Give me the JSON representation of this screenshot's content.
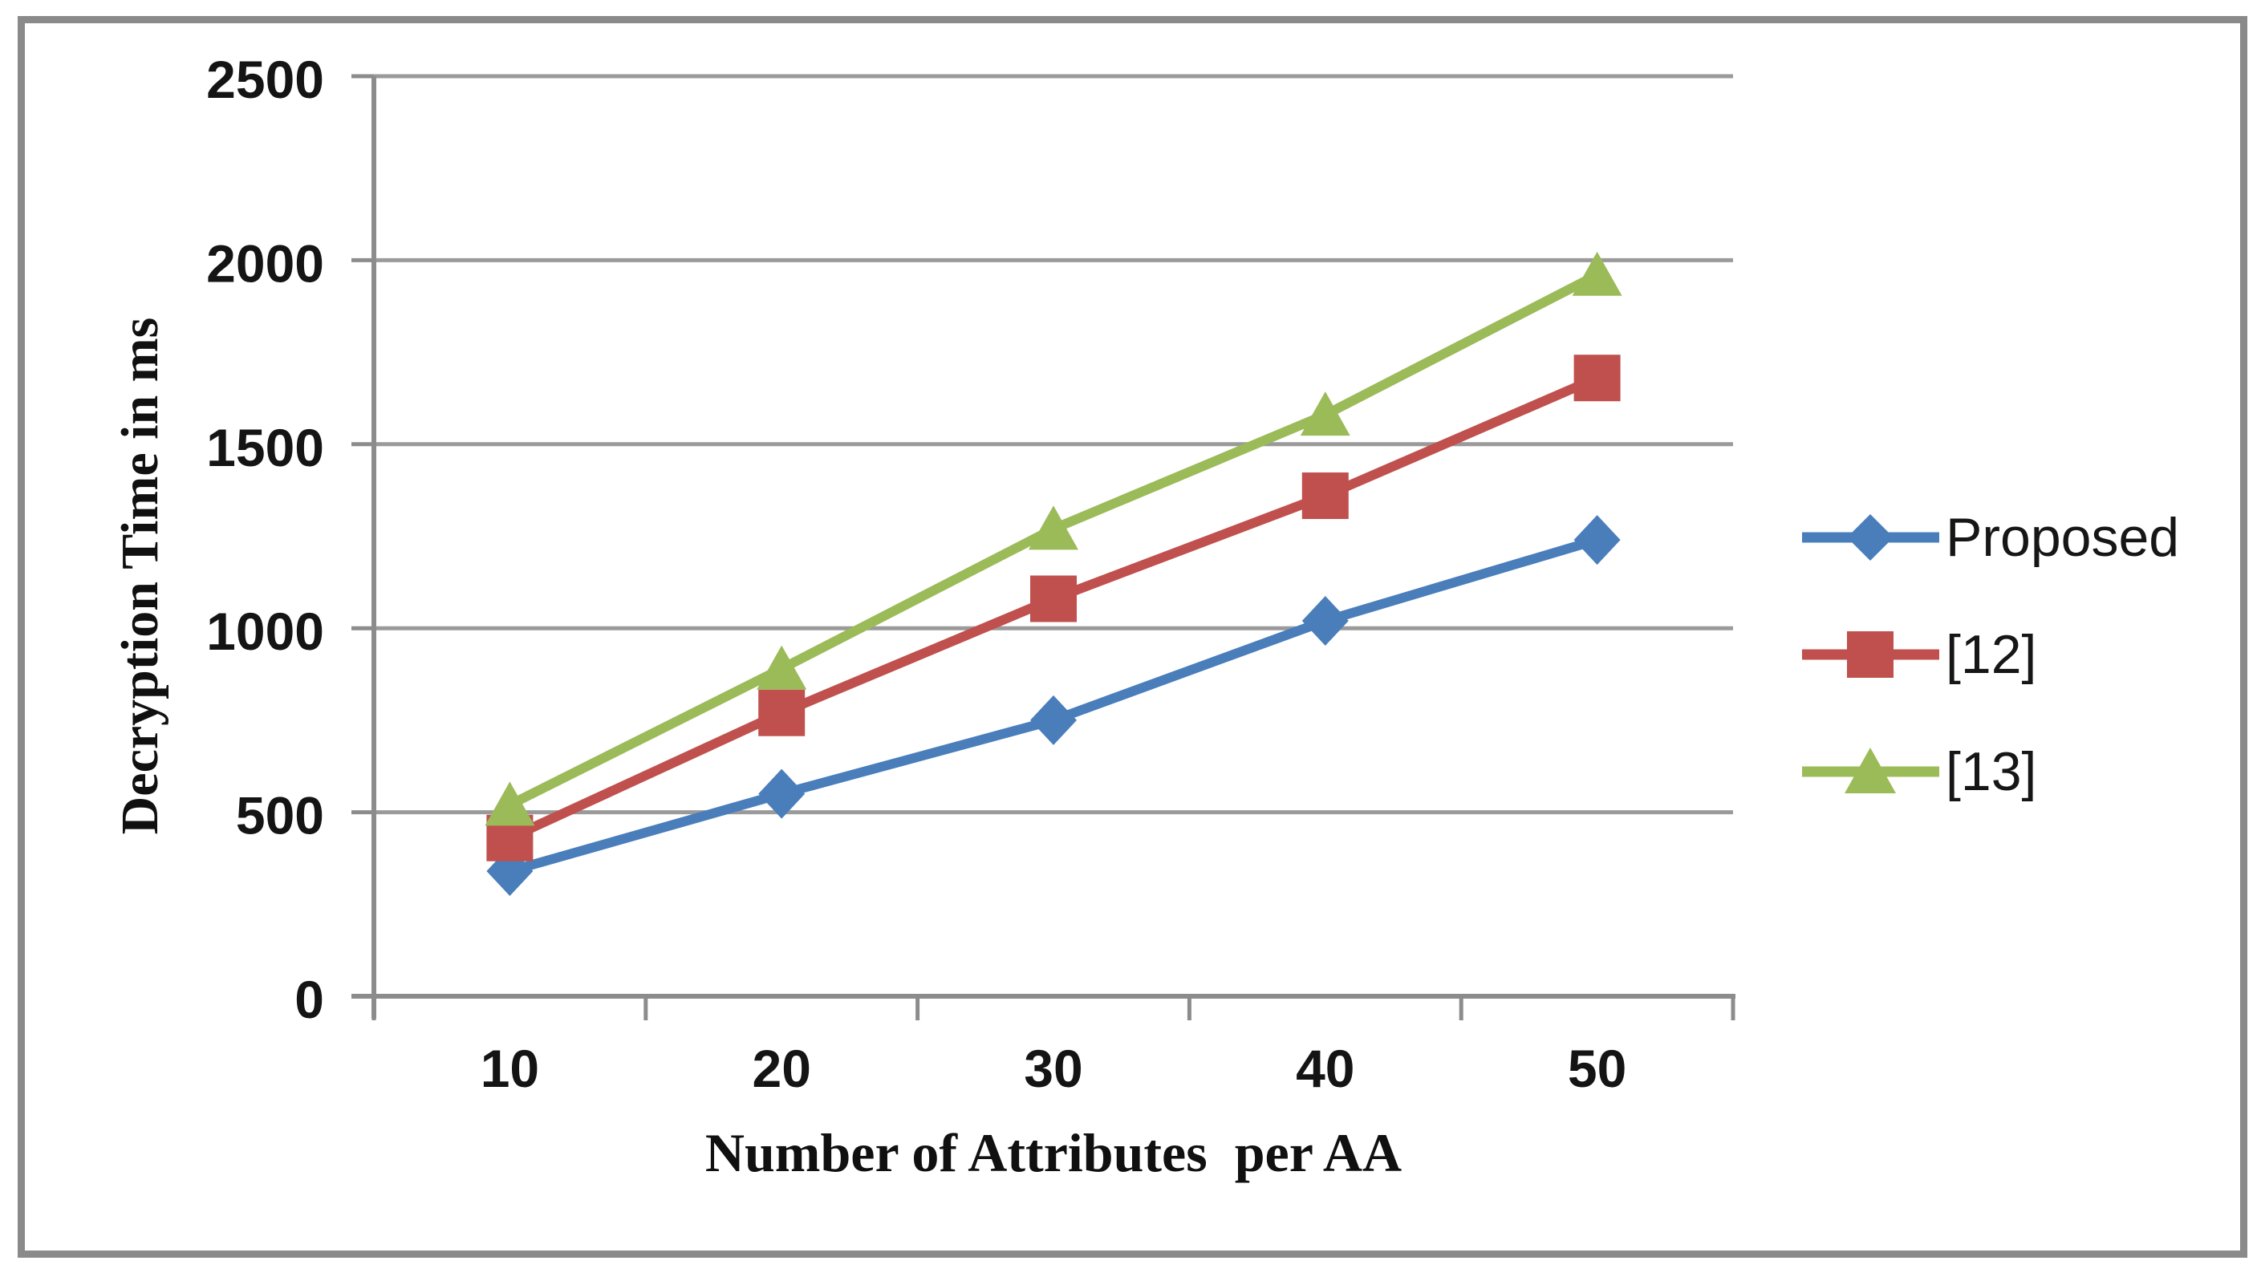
{
  "figure": {
    "background": "#ffffff",
    "border_color": "#8a8a8a"
  },
  "chart_data": {
    "type": "line",
    "title": "",
    "categories": [
      "10",
      "20",
      "30",
      "40",
      "50"
    ],
    "series": [
      {
        "name": "Proposed",
        "marker": "diamond",
        "color": "#4A7EBB",
        "values": [
          340,
          550,
          750,
          1020,
          1240
        ]
      },
      {
        "name": "[12]",
        "marker": "square",
        "color": "#C0504D",
        "values": [
          430,
          770,
          1080,
          1360,
          1680
        ]
      },
      {
        "name": "[13]",
        "marker": "triangle",
        "color": "#9BBB59",
        "values": [
          520,
          890,
          1270,
          1580,
          1960
        ]
      }
    ],
    "xlabel": "Number of Attributes  per AA",
    "ylabel": "Decryption Time in ms",
    "ylim": [
      0,
      2500
    ],
    "y_ticks": [
      0,
      500,
      1000,
      1500,
      2000,
      2500
    ],
    "grid": true,
    "legend_position": "right-middle",
    "colors": {
      "gridline": "#9a9a9a",
      "axis": "#8c8c8c",
      "tick_text": "#141414"
    }
  }
}
